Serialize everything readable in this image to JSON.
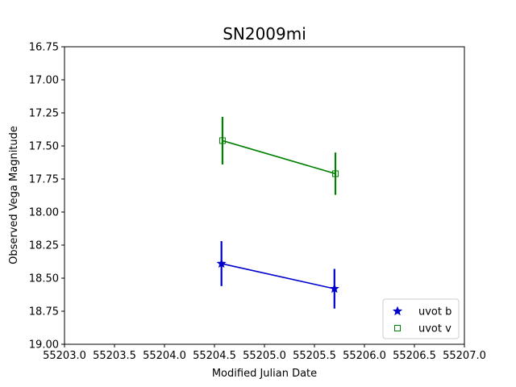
{
  "chart_data": {
    "type": "scatter",
    "title": "SN2009mi",
    "xlabel": "Modified Julian Date",
    "ylabel": "Observed Vega Magnitude",
    "xlim": [
      55203.0,
      55207.0
    ],
    "ylim": [
      19.0,
      16.75
    ],
    "y_inverted": true,
    "xticks": [
      55203.0,
      55203.5,
      55204.0,
      55204.5,
      55205.0,
      55205.5,
      55206.0,
      55206.5,
      55207.0
    ],
    "xtick_labels": [
      "55203.0",
      "55203.5",
      "55204.0",
      "55204.5",
      "55205.0",
      "55205.5",
      "55206.0",
      "55206.5",
      "55207.0"
    ],
    "yticks": [
      16.75,
      17.0,
      17.25,
      17.5,
      17.75,
      18.0,
      18.25,
      18.5,
      18.75,
      19.0
    ],
    "ytick_labels": [
      "16.75",
      "17.00",
      "17.25",
      "17.50",
      "17.75",
      "18.00",
      "18.25",
      "18.50",
      "18.75",
      "19.00"
    ],
    "grid": false,
    "legend_position": "bottom-right",
    "series": [
      {
        "name": "uvot b",
        "marker": "star",
        "color": "#0000cc",
        "x": [
          55204.57,
          55205.7
        ],
        "y": [
          18.39,
          18.58
        ],
        "yerr": [
          0.17,
          0.15
        ]
      },
      {
        "name": "uvot v",
        "marker": "square",
        "color": "#008000",
        "x": [
          55204.58,
          55205.71
        ],
        "y": [
          17.46,
          17.71
        ],
        "yerr": [
          0.18,
          0.16
        ]
      }
    ]
  }
}
